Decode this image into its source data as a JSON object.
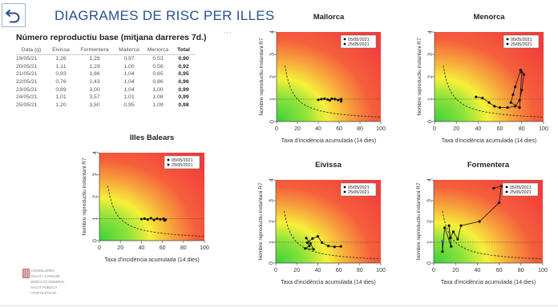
{
  "header": {
    "title": "DIAGRAMES DE RISC PER ILLES",
    "back_label": "back",
    "more_dots": "⋯"
  },
  "table": {
    "title": "Número reproductiu base (mitjana darreres 7d.)",
    "columns": [
      "Data (g)",
      "Eivissa",
      "Formentera",
      "Mallorca",
      "Menorca",
      "Total"
    ],
    "rows": [
      [
        "19/05/21",
        "1,26",
        "1,29",
        "0,97",
        "0,53",
        "0,90"
      ],
      [
        "20/05/21",
        "1,11",
        "1,29",
        "1,00",
        "0,56",
        "0,92"
      ],
      [
        "21/05/21",
        "0,93",
        "1,86",
        "1,04",
        "0,65",
        "0,95"
      ],
      [
        "22/05/21",
        "0,76",
        "2,43",
        "1,04",
        "0,86",
        "0,96"
      ],
      [
        "23/05/21",
        "0,89",
        "3,00",
        "1,04",
        "1,00",
        "0,99"
      ],
      [
        "24/05/21",
        "1,01",
        "3,57",
        "1,01",
        "1,08",
        "0,99"
      ],
      [
        "25/05/21",
        "1,20",
        "3,50",
        "0,95",
        "1,09",
        "0,98"
      ]
    ]
  },
  "logo": {
    "lines": [
      "CONSELLERIA",
      "SALUT I CONSUM",
      "DIRECCIÓ GENERAL",
      "SALUT PÚBLICA",
      "I PARTICIPACIÓ"
    ]
  },
  "chart_data": [
    {
      "type": "scatter",
      "id": "mallorca",
      "title": "Mallorca",
      "xlabel": "Taxa d'incidència acumulada (14 dies)",
      "ylabel": "Nombre reproductiu instantani R7",
      "xlim": [
        0,
        100
      ],
      "ylim": [
        0,
        4
      ],
      "xticks": [
        0,
        20,
        40,
        60,
        80,
        100
      ],
      "yticks": [
        0,
        1,
        2,
        3,
        4
      ],
      "legend": [
        "05/05/2021",
        "25/05/2021"
      ],
      "legend_position": "top-right",
      "points": [
        [
          40,
          0.97
        ],
        [
          43,
          1.0
        ],
        [
          46,
          1.02
        ],
        [
          49,
          0.98
        ],
        [
          51,
          0.94
        ],
        [
          53,
          1.02
        ],
        [
          56,
          1.0
        ],
        [
          59,
          0.96
        ],
        [
          62,
          1.0
        ],
        [
          62,
          0.9
        ]
      ]
    },
    {
      "type": "scatter",
      "id": "menorca",
      "title": "Menorca",
      "xlabel": "Taxa d'incidència acumulada (14 dies)",
      "ylabel": "Nombre reproductiu instantani R7",
      "xlim": [
        0,
        100
      ],
      "ylim": [
        0,
        4
      ],
      "xticks": [
        0,
        20,
        40,
        60,
        80,
        100
      ],
      "yticks": [
        0,
        1,
        2,
        3,
        4
      ],
      "legend": [
        "05/05/2021",
        "25/05/2021"
      ],
      "legend_position": "top-right",
      "points": [
        [
          38,
          1.1
        ],
        [
          44,
          1.05
        ],
        [
          50,
          0.85
        ],
        [
          55,
          0.68
        ],
        [
          60,
          0.62
        ],
        [
          67,
          0.62
        ],
        [
          74,
          0.68
        ],
        [
          78,
          0.95
        ],
        [
          80,
          1.4
        ],
        [
          82,
          2.1
        ],
        [
          79,
          2.3
        ],
        [
          74,
          1.55
        ],
        [
          72,
          1.2
        ],
        [
          70,
          0.85
        ],
        [
          78,
          0.62
        ],
        [
          80,
          2.2
        ]
      ]
    },
    {
      "type": "scatter",
      "id": "illes-balears",
      "title": "Illes Balears",
      "xlabel": "Taxa d'incidència acumulada (14 dies)",
      "ylabel": "Nombre reproductiu instantani R7",
      "xlim": [
        0,
        100
      ],
      "ylim": [
        0,
        4
      ],
      "xticks": [
        0,
        20,
        40,
        60,
        80,
        100
      ],
      "yticks": [
        0,
        1,
        2,
        3,
        4
      ],
      "legend": [
        "05/05/2021",
        "25/05/2021"
      ],
      "legend_position": "top-right",
      "points": [
        [
          40,
          0.98
        ],
        [
          43,
          1.0
        ],
        [
          46,
          0.96
        ],
        [
          49,
          1.02
        ],
        [
          52,
          0.94
        ],
        [
          55,
          1.0
        ],
        [
          58,
          0.97
        ],
        [
          61,
          1.0
        ],
        [
          63,
          0.95
        ],
        [
          62,
          0.92
        ]
      ]
    },
    {
      "type": "scatter",
      "id": "eivissa",
      "title": "Eivissa",
      "xlabel": "Taxa d'incidència acumulada (14 dies)",
      "ylabel": "Nombre reproductiu instantani R7",
      "xlim": [
        0,
        100
      ],
      "ylim": [
        0,
        4
      ],
      "xticks": [
        0,
        20,
        40,
        60,
        80,
        100
      ],
      "yticks": [
        0,
        1,
        2,
        3,
        4
      ],
      "legend": [
        "05/05/2021",
        "25/05/2021"
      ],
      "legend_position": "top-right",
      "points": [
        [
          62,
          0.8
        ],
        [
          56,
          0.78
        ],
        [
          50,
          0.82
        ],
        [
          44,
          0.98
        ],
        [
          40,
          1.28
        ],
        [
          35,
          1.18
        ],
        [
          30,
          0.98
        ],
        [
          32,
          0.82
        ],
        [
          28,
          0.7
        ],
        [
          36,
          0.66
        ],
        [
          33,
          0.95
        ],
        [
          29,
          1.2
        ]
      ]
    },
    {
      "type": "scatter",
      "id": "formentera",
      "title": "Formentera",
      "xlabel": "Taxa d'incidència acumulada (14 dies)",
      "ylabel": "Nombre reproductiu instantani R7",
      "xlim": [
        0,
        100
      ],
      "ylim": [
        0,
        4
      ],
      "xticks": [
        0,
        20,
        40,
        60,
        80,
        100
      ],
      "yticks": [
        0,
        1,
        2,
        3,
        4
      ],
      "legend": [
        "05/05/2021",
        "25/05/2021"
      ],
      "legend_position": "top-right",
      "points": [
        [
          55,
          3.6
        ],
        [
          62,
          3.7
        ],
        [
          60,
          2.9
        ],
        [
          42,
          2.0
        ],
        [
          25,
          1.8
        ],
        [
          22,
          1.15
        ],
        [
          18,
          1.5
        ],
        [
          15,
          1.2
        ],
        [
          14,
          1.8
        ],
        [
          16,
          0.8
        ],
        [
          10,
          1.7
        ],
        [
          8,
          0.55
        ],
        [
          8,
          1.05
        ]
      ]
    }
  ]
}
